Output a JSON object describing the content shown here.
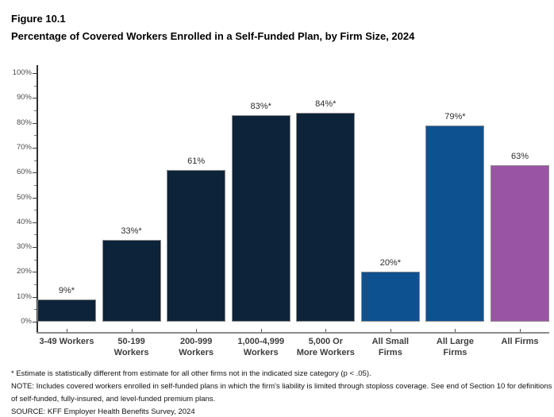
{
  "figure": {
    "label": "Figure 10.1",
    "title": "Percentage of Covered Workers Enrolled in a Self-Funded Plan, by Firm Size, 2024"
  },
  "chart_data": {
    "type": "bar",
    "title": "Percentage of Covered Workers Enrolled in a Self-Funded Plan, by Firm Size, 2024",
    "categories": [
      "3-49 Workers",
      "50-199 Workers",
      "200-999 Workers",
      "1,000-4,999 Workers",
      "5,000 Or More Workers",
      "All Small Firms",
      "All Large Firms",
      "All Firms"
    ],
    "category_lines": [
      [
        "3-49 Workers"
      ],
      [
        "50-199",
        "Workers"
      ],
      [
        "200-999",
        "Workers"
      ],
      [
        "1,000-4,999",
        "Workers"
      ],
      [
        "5,000 Or",
        "More Workers"
      ],
      [
        "All Small",
        "Firms"
      ],
      [
        "All Large",
        "Firms"
      ],
      [
        "All Firms"
      ]
    ],
    "values": [
      9,
      33,
      61,
      83,
      84,
      20,
      79,
      63
    ],
    "data_labels": [
      "9%*",
      "33%*",
      "61%",
      "83%*",
      "84%*",
      "20%*",
      "79%*",
      "63%"
    ],
    "bar_colors": [
      "#0d2339",
      "#0d2339",
      "#0d2339",
      "#0d2339",
      "#0d2339",
      "#0e5191",
      "#0e5191",
      "#9a54a4"
    ],
    "xlabel": "",
    "ylabel": "",
    "ylim": [
      0,
      100
    ],
    "ytick_interval": 10,
    "ytick_minor_interval": 5,
    "ytick_labels": [
      "0%",
      "10%",
      "20%",
      "30%",
      "40%",
      "50%",
      "60%",
      "70%",
      "80%",
      "90%",
      "100%"
    ],
    "grid": "off",
    "legend": "none"
  },
  "colors": {
    "dark_navy": "#0d2339",
    "blue": "#0e5191",
    "purple": "#9a54a4",
    "y_axis_line": "#2f2f2f",
    "x_axis_line": "#8c8c8c",
    "bar_border": "#8c8c8c",
    "tick_label": "#4d4d4d",
    "background": "#ffffff"
  },
  "footnotes": [
    "* Estimate is statistically different from estimate for all other firms not in the indicated size category (p < .05).",
    "NOTE: Includes covered workers enrolled in self-funded plans in which the firm's liability is limited through stoploss coverage. See end of Section 10 for definitions of self-funded, fully-insured, and level-funded premium plans.",
    "SOURCE: KFF Employer Health Benefits Survey, 2024"
  ]
}
